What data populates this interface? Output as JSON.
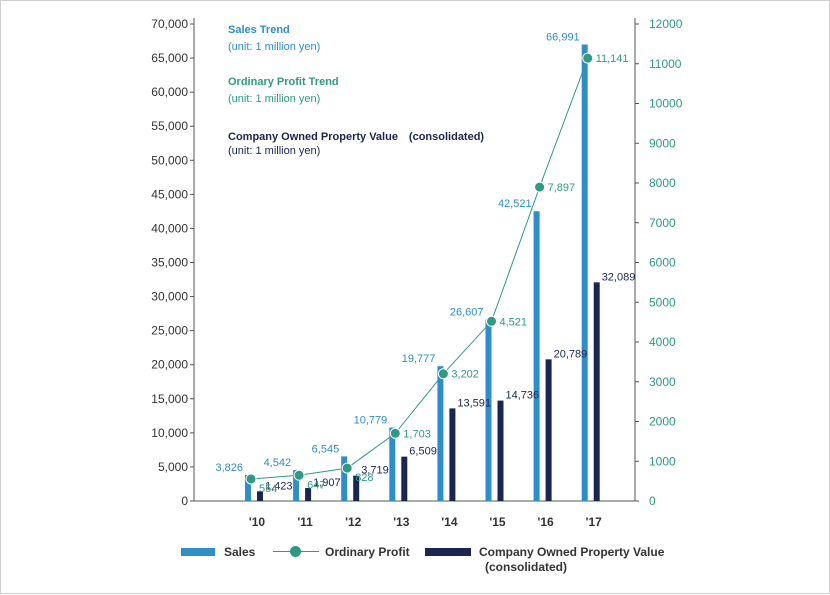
{
  "colors": {
    "sales": "#2f8ec7",
    "profit": "#2e9a86",
    "property": "#1b2650",
    "axis_text": "#333333"
  },
  "chart_data": {
    "type": "bar",
    "categories": [
      "'10",
      "'11",
      "'12",
      "'13",
      "'14",
      "'15",
      "'16",
      "'17"
    ],
    "series": [
      {
        "name": "Sales",
        "type": "bar",
        "axis": "left",
        "values": [
          3826,
          4542,
          6545,
          10779,
          19777,
          26607,
          42521,
          66991
        ],
        "labels": [
          "3,826",
          "4,542",
          "6,545",
          "10,779",
          "19,777",
          "26,607",
          "42,521",
          "66,991"
        ]
      },
      {
        "name": "Company Owned Property Value (consolidated)",
        "type": "bar",
        "axis": "left",
        "values": [
          1423,
          1907,
          3719,
          6509,
          13591,
          14736,
          20789,
          32089
        ],
        "labels": [
          "1,423",
          "1,907",
          "3,719",
          "6,509",
          "13,591",
          "14,736",
          "20,789",
          "32,089"
        ]
      },
      {
        "name": "Ordinary Profit",
        "type": "line",
        "axis": "right",
        "values": [
          554,
          647,
          828,
          1703,
          3202,
          4521,
          7897,
          11141
        ],
        "labels": [
          "554",
          "647",
          "828",
          "1,703",
          "3,202",
          "4,521",
          "7,897",
          "11,141"
        ]
      }
    ],
    "y_left": {
      "ylim": [
        0,
        70000
      ],
      "ticks": [
        "0",
        "5,000",
        "10,000",
        "15,000",
        "20,000",
        "25,000",
        "30,000",
        "35,000",
        "40,000",
        "45,000",
        "50,000",
        "55,000",
        "60,000",
        "65,000",
        "70,000"
      ]
    },
    "y_right": {
      "ylim": [
        0,
        12000
      ],
      "ticks": [
        "0",
        "1000",
        "2000",
        "3000",
        "4000",
        "5000",
        "6000",
        "7000",
        "8000",
        "9000",
        "10000",
        "11000",
        "12000"
      ]
    },
    "grid": false
  },
  "notes": {
    "sales_title": "Sales Trend",
    "sales_unit": "(unit: 1 million yen)",
    "profit_title": "Ordinary Profit Trend",
    "profit_unit": "(unit: 1 million yen)",
    "property_title": "Company Owned Property Value　(consolidated)",
    "property_unit": "(unit: 1 million yen)"
  },
  "legend": {
    "sales": "Sales",
    "profit": "Ordinary Profit",
    "property_line1": "Company Owned Property Value",
    "property_line2": "(consolidated)"
  }
}
